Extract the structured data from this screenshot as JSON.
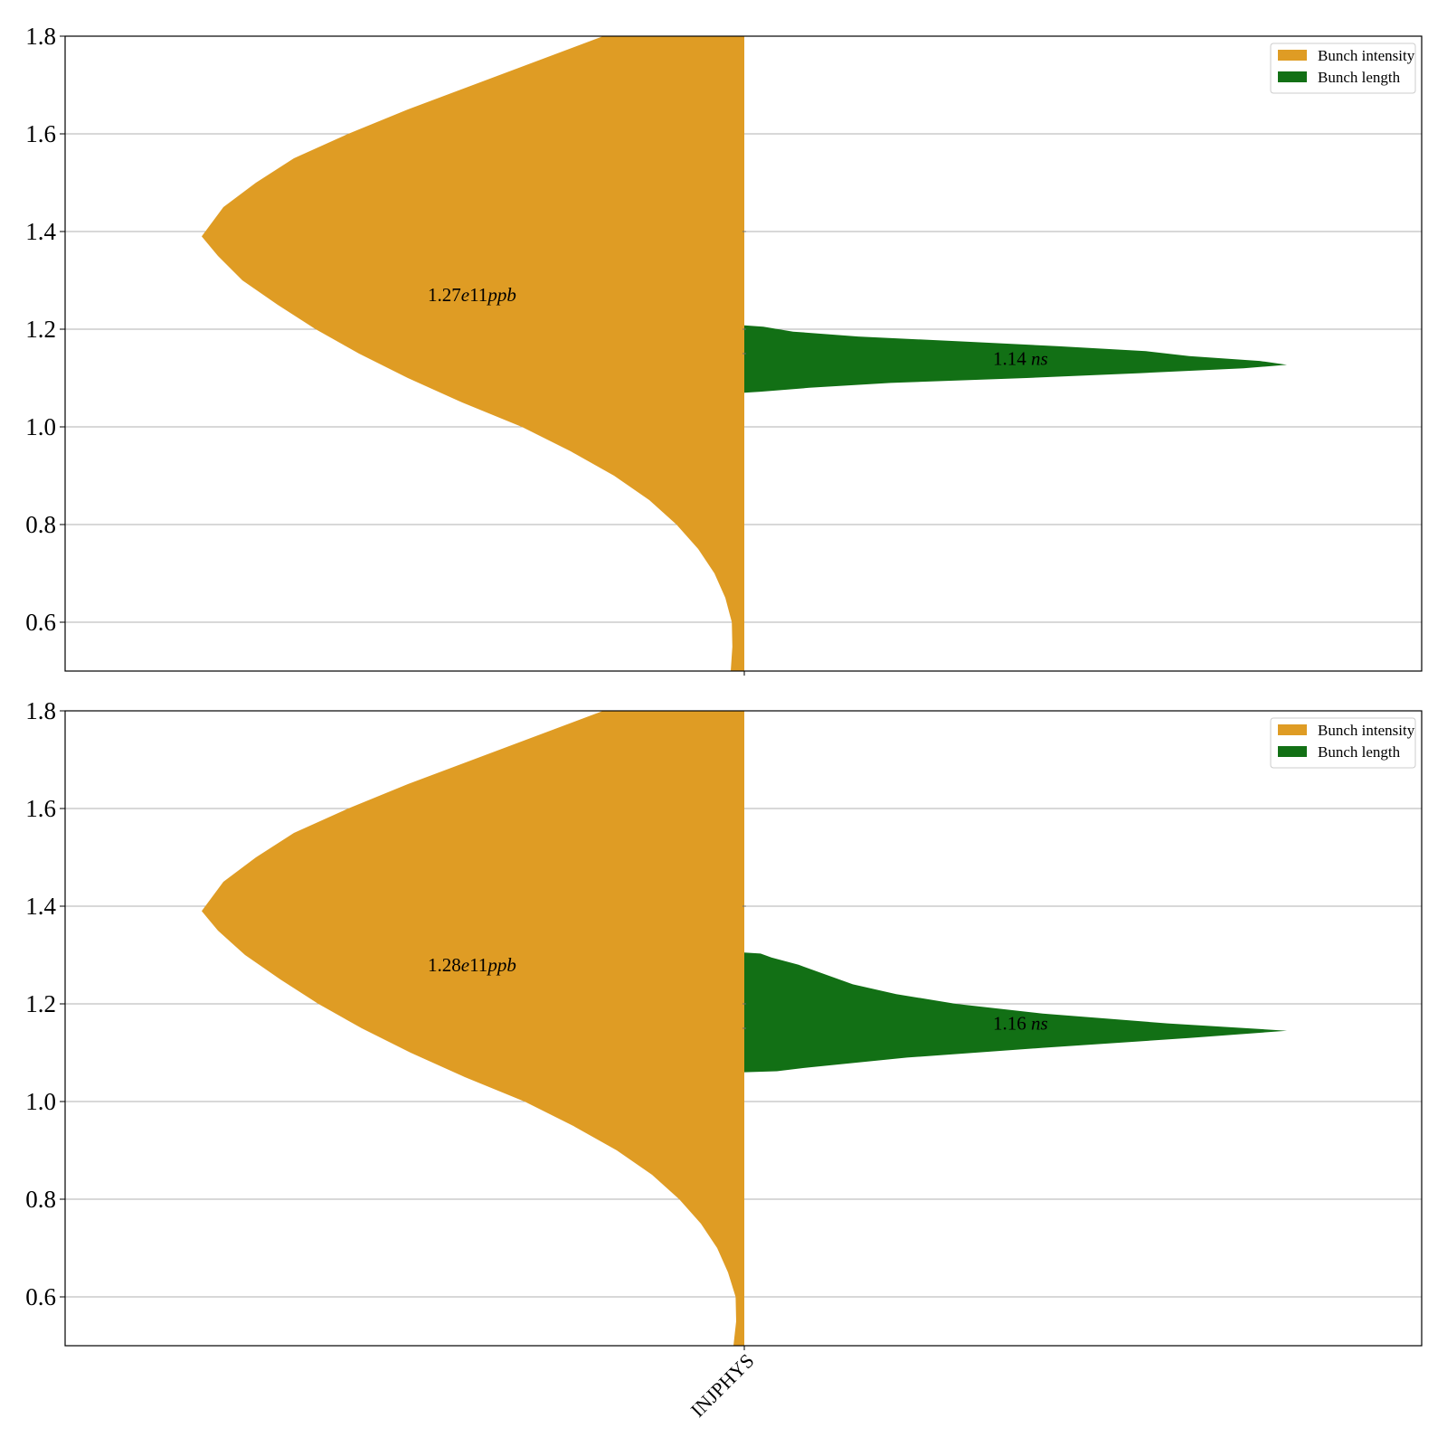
{
  "chart_data": [
    {
      "type": "violin",
      "category": "INJPHYS",
      "ylim": [
        0.5,
        1.8
      ],
      "yticks": [
        "0.6",
        "0.8",
        "1.0",
        "1.2",
        "1.4",
        "1.6",
        "1.8"
      ],
      "grid": true,
      "legend_position": "top-right",
      "colors": {
        "intensity": "#df9c24",
        "length": "#127015"
      },
      "series": [
        {
          "name": "Bunch intensity",
          "side": "left",
          "mode": 1.39,
          "profile": [
            [
              0.5,
              0.025
            ],
            [
              0.55,
              0.022
            ],
            [
              0.6,
              0.023
            ],
            [
              0.65,
              0.035
            ],
            [
              0.7,
              0.055
            ],
            [
              0.75,
              0.085
            ],
            [
              0.8,
              0.125
            ],
            [
              0.85,
              0.175
            ],
            [
              0.9,
              0.24
            ],
            [
              0.95,
              0.32
            ],
            [
              1.0,
              0.41
            ],
            [
              1.05,
              0.52
            ],
            [
              1.1,
              0.62
            ],
            [
              1.15,
              0.71
            ],
            [
              1.2,
              0.79
            ],
            [
              1.25,
              0.86
            ],
            [
              1.3,
              0.925
            ],
            [
              1.35,
              0.97
            ],
            [
              1.39,
              1.0
            ],
            [
              1.45,
              0.96
            ],
            [
              1.5,
              0.9
            ],
            [
              1.55,
              0.83
            ],
            [
              1.6,
              0.73
            ],
            [
              1.65,
              0.62
            ],
            [
              1.7,
              0.5
            ],
            [
              1.75,
              0.38
            ],
            [
              1.8,
              0.26
            ]
          ]
        },
        {
          "name": "Bunch length",
          "side": "right",
          "profile": [
            [
              1.07,
              0.0
            ],
            [
              1.072,
              0.03
            ],
            [
              1.08,
              0.12
            ],
            [
              1.09,
              0.27
            ],
            [
              1.1,
              0.52
            ],
            [
              1.11,
              0.73
            ],
            [
              1.12,
              0.92
            ],
            [
              1.127,
              1.0
            ],
            [
              1.135,
              0.95
            ],
            [
              1.145,
              0.82
            ],
            [
              1.155,
              0.74
            ],
            [
              1.165,
              0.58
            ],
            [
              1.175,
              0.4
            ],
            [
              1.185,
              0.21
            ],
            [
              1.195,
              0.09
            ],
            [
              1.205,
              0.035
            ],
            [
              1.208,
              0.0
            ]
          ]
        }
      ],
      "annotations": [
        {
          "number": "1.27",
          "italic": "e",
          "number2": "11",
          "italic2": "ppb",
          "y": 1.27
        },
        {
          "number": "1.14 ",
          "italic": "ns",
          "number2": "",
          "italic2": "",
          "y": 1.14
        }
      ]
    },
    {
      "type": "violin",
      "category": "INJPHYS",
      "ylim": [
        0.5,
        1.8
      ],
      "yticks": [
        "0.6",
        "0.8",
        "1.0",
        "1.2",
        "1.4",
        "1.6",
        "1.8"
      ],
      "grid": true,
      "legend_position": "top-right",
      "colors": {
        "intensity": "#df9c24",
        "length": "#127015"
      },
      "series": [
        {
          "name": "Bunch intensity",
          "side": "left",
          "mode": 1.39,
          "profile": [
            [
              0.5,
              0.02
            ],
            [
              0.55,
              0.015
            ],
            [
              0.6,
              0.016
            ],
            [
              0.65,
              0.03
            ],
            [
              0.7,
              0.05
            ],
            [
              0.75,
              0.08
            ],
            [
              0.8,
              0.12
            ],
            [
              0.85,
              0.17
            ],
            [
              0.9,
              0.235
            ],
            [
              0.95,
              0.315
            ],
            [
              1.0,
              0.405
            ],
            [
              1.05,
              0.515
            ],
            [
              1.1,
              0.615
            ],
            [
              1.15,
              0.705
            ],
            [
              1.2,
              0.785
            ],
            [
              1.25,
              0.855
            ],
            [
              1.3,
              0.92
            ],
            [
              1.35,
              0.97
            ],
            [
              1.39,
              1.0
            ],
            [
              1.45,
              0.96
            ],
            [
              1.5,
              0.9
            ],
            [
              1.55,
              0.83
            ],
            [
              1.6,
              0.73
            ],
            [
              1.65,
              0.62
            ],
            [
              1.7,
              0.5
            ],
            [
              1.75,
              0.38
            ],
            [
              1.8,
              0.26
            ]
          ]
        },
        {
          "name": "Bunch length",
          "side": "right",
          "profile": [
            [
              1.06,
              0.0
            ],
            [
              1.062,
              0.06
            ],
            [
              1.07,
              0.12
            ],
            [
              1.09,
              0.3
            ],
            [
              1.11,
              0.55
            ],
            [
              1.13,
              0.82
            ],
            [
              1.145,
              1.0
            ],
            [
              1.16,
              0.78
            ],
            [
              1.18,
              0.55
            ],
            [
              1.2,
              0.39
            ],
            [
              1.22,
              0.28
            ],
            [
              1.24,
              0.2
            ],
            [
              1.26,
              0.15
            ],
            [
              1.28,
              0.1
            ],
            [
              1.295,
              0.05
            ],
            [
              1.303,
              0.03
            ],
            [
              1.305,
              0.0
            ]
          ]
        }
      ],
      "annotations": [
        {
          "number": "1.28",
          "italic": "e",
          "number2": "11",
          "italic2": "ppb",
          "y": 1.28
        },
        {
          "number": "1.16 ",
          "italic": "ns",
          "number2": "",
          "italic2": "",
          "y": 1.16
        }
      ]
    }
  ]
}
